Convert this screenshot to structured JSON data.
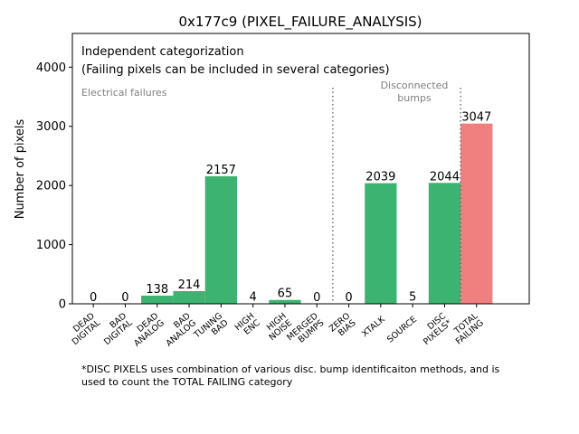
{
  "chart_data": {
    "type": "bar",
    "title": "0x177c9 (PIXEL_FAILURE_ANALYSIS)",
    "ylabel": "Number of pixels",
    "xlabel": "",
    "ylim": [
      0,
      4570
    ],
    "yticks": [
      0,
      1000,
      2000,
      3000,
      4000
    ],
    "grid": false,
    "categories": [
      "DEAD\nDIGITAL",
      "BAD\nDIGITAL",
      "DEAD\nANALOG",
      "BAD\nANALOG",
      "TUNING\nBAD",
      "HIGH\nENC",
      "HIGH\nNOISE",
      "MERGED\nBUMPS",
      "ZERO\nBIAS",
      "XTALK",
      "SOURCE",
      "DISC\nPIXELS*",
      "TOTAL\nFAILING"
    ],
    "values": [
      0,
      0,
      138,
      214,
      2157,
      4,
      65,
      0,
      0,
      2039,
      5,
      2044,
      3047
    ],
    "bar_colors": [
      "#3cb371",
      "#3cb371",
      "#3cb371",
      "#3cb371",
      "#3cb371",
      "#3cb371",
      "#3cb371",
      "#3cb371",
      "#3cb371",
      "#3cb371",
      "#3cb371",
      "#3cb371",
      "#f08080"
    ],
    "annotations": {
      "heading_line1": "Independent categorization",
      "heading_line2": "(Failing pixels can be included in several categories)",
      "electrical": "Electrical failures",
      "disconnected": "Disconnected\nbumps"
    },
    "separators_after_index": [
      7,
      11
    ]
  },
  "footnote": "*DISC PIXELS uses combination of various disc. bump identificaiton methods, and is\nused to count the TOTAL FAILING category"
}
